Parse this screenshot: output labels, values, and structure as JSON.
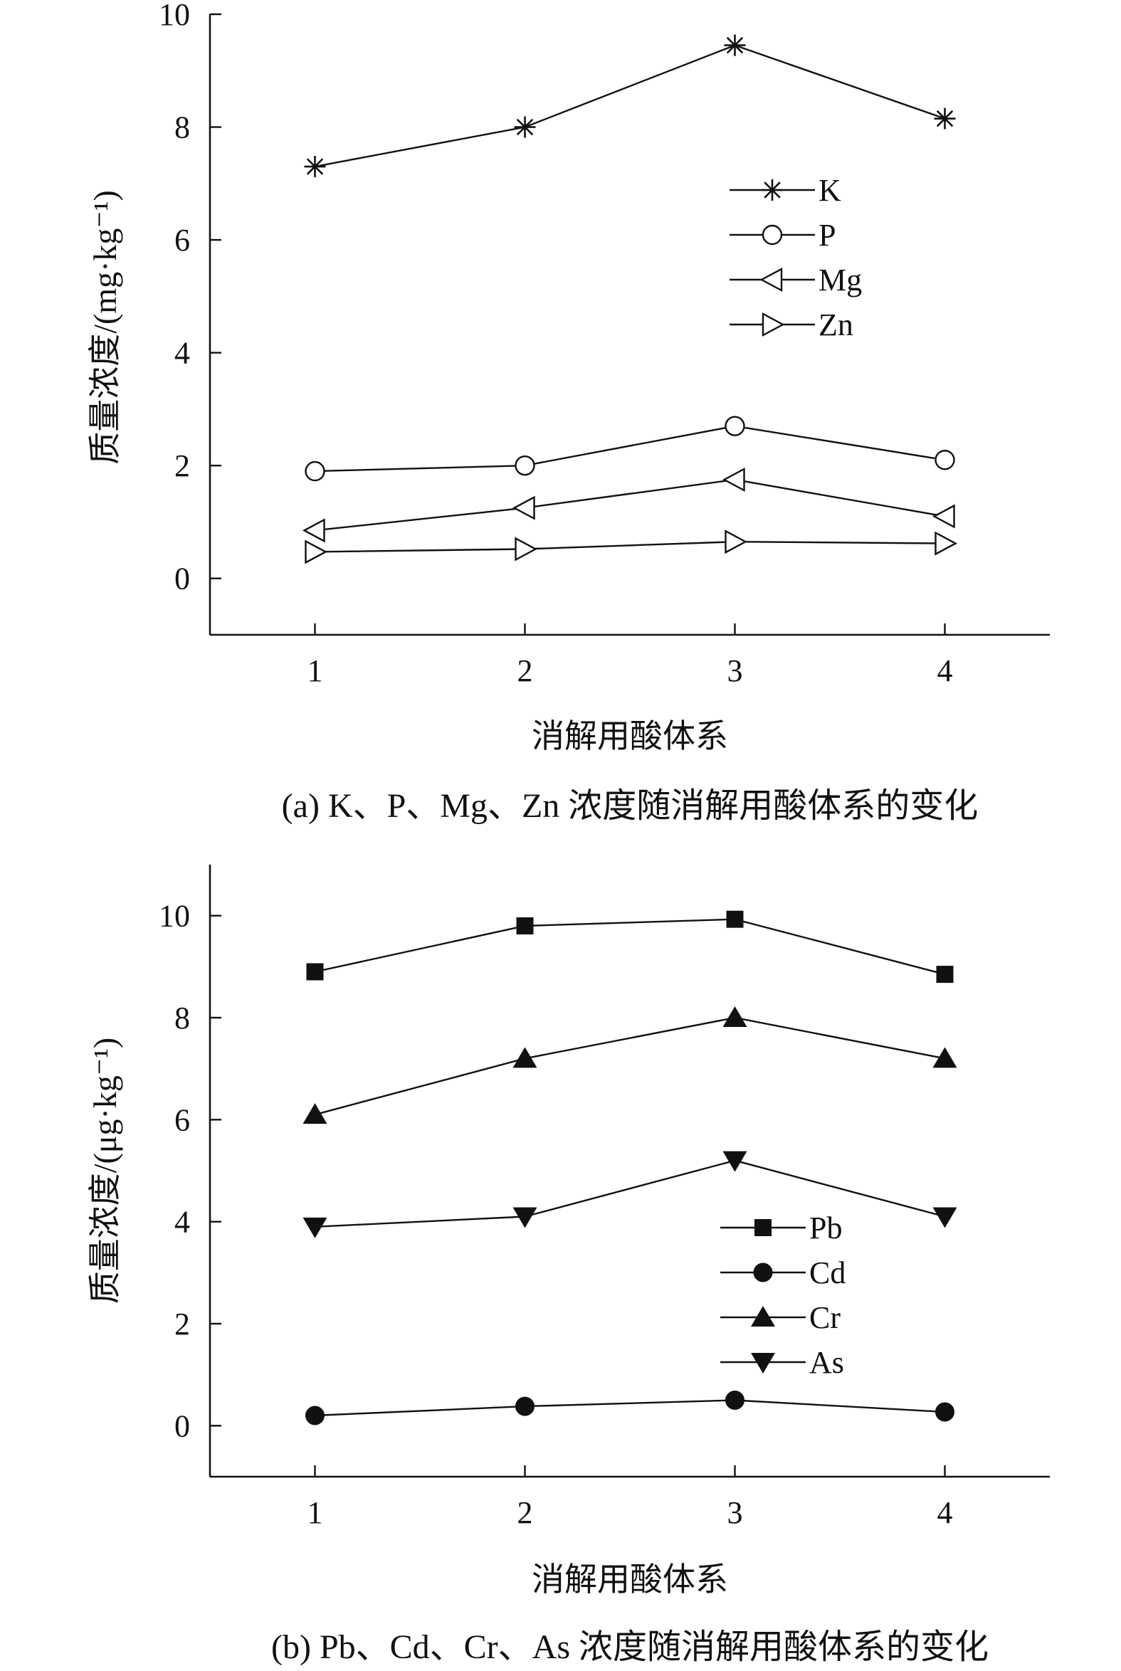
{
  "chart_data": [
    {
      "type": "line",
      "caption": "(a) K、P、Mg、Zn 浓度随消解用酸体系的变化",
      "xlabel": "消解用酸体系",
      "ylabel": "质量浓度/(mg·kg⁻¹)",
      "x": [
        1,
        2,
        3,
        4
      ],
      "x_ticks": [
        "1",
        "2",
        "3",
        "4"
      ],
      "xlim": [
        0.5,
        4.5
      ],
      "ylim": [
        -1,
        10
      ],
      "y_ticks": [
        "0",
        "2",
        "4",
        "6",
        "8",
        "10"
      ],
      "legend_position": "upper-right",
      "series": [
        {
          "name": "K",
          "marker": "asterisk",
          "values": [
            7.3,
            8.0,
            9.45,
            8.15
          ]
        },
        {
          "name": "P",
          "marker": "circle-open",
          "values": [
            1.9,
            2.0,
            2.7,
            2.1
          ]
        },
        {
          "name": "Mg",
          "marker": "triangle-left-open",
          "values": [
            0.85,
            1.25,
            1.75,
            1.1
          ]
        },
        {
          "name": "Zn",
          "marker": "triangle-right-open",
          "values": [
            0.47,
            0.52,
            0.65,
            0.62
          ]
        }
      ]
    },
    {
      "type": "line",
      "caption": "(b) Pb、Cd、Cr、As 浓度随消解用酸体系的变化",
      "xlabel": "消解用酸体系",
      "ylabel": "质量浓度/(μg·kg⁻¹)",
      "x": [
        1,
        2,
        3,
        4
      ],
      "x_ticks": [
        "1",
        "2",
        "3",
        "4"
      ],
      "xlim": [
        0.5,
        4.5
      ],
      "ylim": [
        -1,
        11
      ],
      "y_ticks": [
        "0",
        "2",
        "4",
        "6",
        "8",
        "10"
      ],
      "legend_position": "lower-right",
      "series": [
        {
          "name": "Pb",
          "marker": "square-filled",
          "values": [
            8.9,
            9.8,
            9.93,
            8.85
          ]
        },
        {
          "name": "Cd",
          "marker": "circle-filled",
          "values": [
            0.2,
            0.38,
            0.5,
            0.27
          ]
        },
        {
          "name": "Cr",
          "marker": "triangle-up-filled",
          "values": [
            6.1,
            7.2,
            8.0,
            7.2
          ]
        },
        {
          "name": "As",
          "marker": "triangle-down-filled",
          "values": [
            3.9,
            4.1,
            5.2,
            4.1
          ]
        }
      ]
    }
  ]
}
